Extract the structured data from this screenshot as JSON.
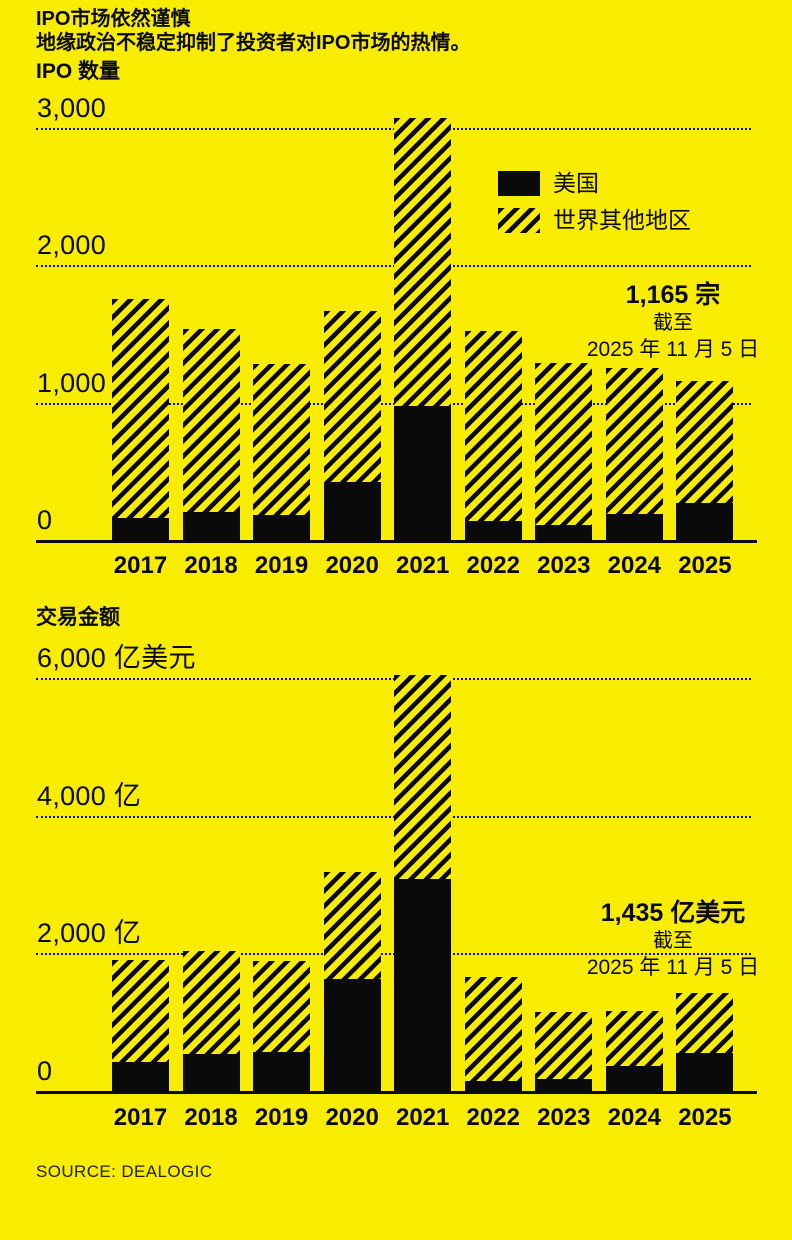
{
  "header": {
    "title": "IPO市场依然谨慎",
    "subtitle": "地缘政治不稳定抑制了投资者对IPO市场的热情。"
  },
  "footer": {
    "source": "SOURCE: DEALOGIC"
  },
  "colors": {
    "background": "#F8EC00",
    "ink": "#0A0A0A"
  },
  "legend": {
    "items": [
      {
        "label": "美国",
        "swatch": "solid"
      },
      {
        "label": "世界其他地区",
        "swatch": "hatch"
      }
    ]
  },
  "chart_data": [
    {
      "id": "ipo-count",
      "type": "bar",
      "stacked": true,
      "section_title": "IPO 数量",
      "unit": "宗",
      "grid": "dotted-horizontal",
      "legend_position": "top-right-inside",
      "categories": [
        "2017",
        "2018",
        "2019",
        "2020",
        "2021",
        "2022",
        "2023",
        "2024",
        "2025"
      ],
      "series": [
        {
          "name": "美国",
          "pattern": "solid",
          "values": [
            165,
            210,
            190,
            430,
            985,
            145,
            115,
            195,
            275
          ]
        },
        {
          "name": "世界其他地区",
          "pattern": "hatch",
          "values": [
            1595,
            1330,
            1100,
            1240,
            2090,
            1385,
            1180,
            1065,
            890
          ]
        }
      ],
      "totals": [
        1760,
        1540,
        1290,
        1670,
        3075,
        1530,
        1295,
        1260,
        1165
      ],
      "ylim": [
        0,
        3200
      ],
      "yticks": [
        {
          "value": 0,
          "label": "0"
        },
        {
          "value": 1000,
          "label": "1,000"
        },
        {
          "value": 2000,
          "label": "2,000"
        },
        {
          "value": 3000,
          "label": "3,000"
        }
      ],
      "annotation": {
        "value": "1,165 宗",
        "note_line1": "截至",
        "note_line2": "2025 年 11 月 5 日"
      }
    },
    {
      "id": "deal-value",
      "type": "bar",
      "stacked": true,
      "section_title": "交易金额",
      "unit": "亿美元",
      "grid": "dotted-horizontal",
      "legend_position": "none",
      "categories": [
        "2017",
        "2018",
        "2019",
        "2020",
        "2021",
        "2022",
        "2023",
        "2024",
        "2025"
      ],
      "series": [
        {
          "name": "美国",
          "pattern": "solid",
          "values": [
            435,
            550,
            580,
            1645,
            3090,
            160,
            190,
            375,
            565
          ]
        },
        {
          "name": "世界其他地区",
          "pattern": "hatch",
          "values": [
            1485,
            1500,
            1320,
            1555,
            2970,
            1515,
            965,
            795,
            870
          ]
        }
      ],
      "totals": [
        1920,
        2050,
        1900,
        3200,
        6060,
        1675,
        1155,
        1170,
        1435
      ],
      "ylim": [
        0,
        6200
      ],
      "yticks": [
        {
          "value": 0,
          "label": "0"
        },
        {
          "value": 2000,
          "label": "2,000 亿"
        },
        {
          "value": 4000,
          "label": "4,000 亿"
        },
        {
          "value": 6000,
          "label": "6,000 亿美元"
        }
      ],
      "annotation": {
        "value": "1,435 亿美元",
        "note_line1": "截至",
        "note_line2": "2025 年 11 月 5 日"
      }
    }
  ]
}
